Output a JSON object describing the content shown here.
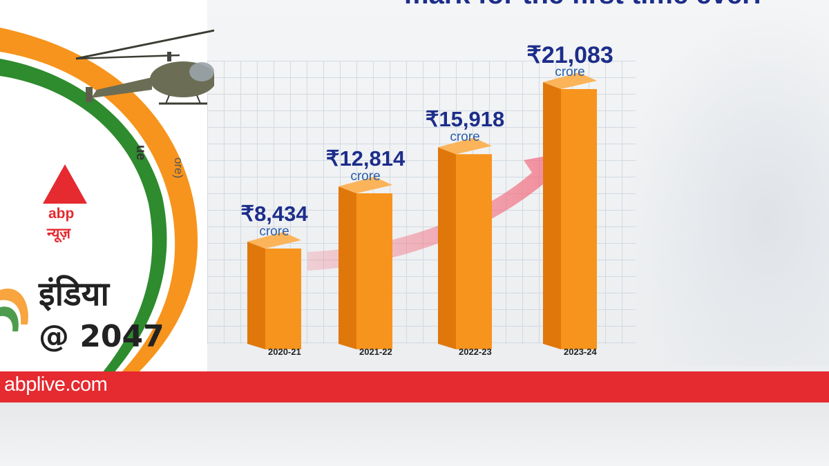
{
  "headline": "mark for the first time ever!",
  "site": "abplive.com",
  "brand": {
    "en": "abp",
    "hi": "न्यूज़"
  },
  "series_title": {
    "line1": "इंडिया",
    "line2": "@ 2047"
  },
  "side_label": {
    "a": "ue",
    "b": "ore)"
  },
  "colors": {
    "bar_front": "#f7941d",
    "bar_side": "#e0770b",
    "bar_top": "#fbb45a",
    "value_text": "#1c2d8a",
    "unit_text": "#2a5da8",
    "red": "#e52a30",
    "saffron": "#f7941d",
    "green": "#2e8b2e",
    "arrow": "#f26a7d"
  },
  "chart_data": {
    "type": "bar",
    "categories": [
      "2020-21",
      "2021-22",
      "2022-23",
      "2023-24"
    ],
    "values": [
      8434,
      12814,
      15918,
      21083
    ],
    "value_labels": [
      "₹8,434",
      "₹12,814",
      "₹15,918",
      "₹21,083"
    ],
    "unit_label": "crore",
    "ylim": [
      0,
      23000
    ],
    "grid": true,
    "trend_arrow": true
  }
}
